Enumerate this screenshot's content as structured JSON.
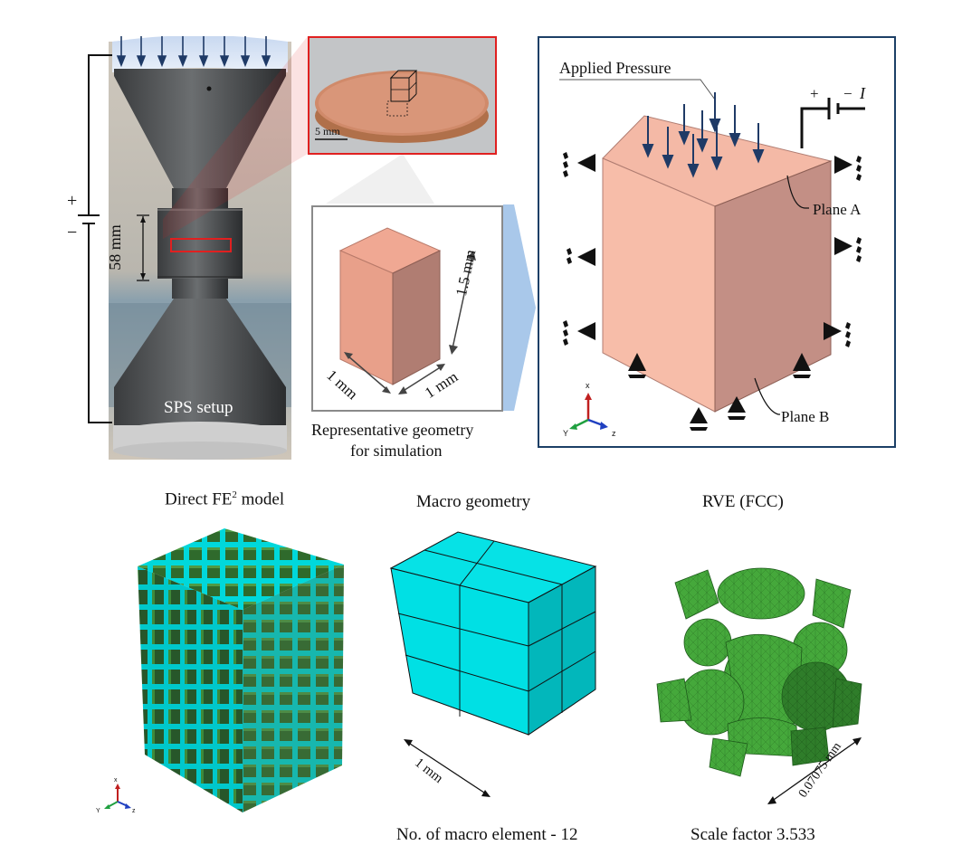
{
  "sps": {
    "dimension_58": "58 mm",
    "setup_label": "SPS setup",
    "plus": "+",
    "minus": "−"
  },
  "photo": {
    "scale_label": "5 mm"
  },
  "rep_geometry": {
    "dim_height": "1.5 mm",
    "dim_left": "1 mm",
    "dim_right": "1 mm",
    "caption_line1": "Representative geometry",
    "caption_line2": "for simulation"
  },
  "boundary": {
    "applied_pressure": "Applied Pressure",
    "plane_a": "Plane A",
    "plane_b": "Plane B",
    "plus": "+",
    "minus": "−",
    "current": "I",
    "axis_x": "x",
    "axis_y": "Y",
    "axis_z": "z"
  },
  "direct_model": {
    "title": "Direct FE",
    "title_sup": "2",
    "title_suffix": " model",
    "axis_x": "x",
    "axis_y": "Y",
    "axis_z": "z"
  },
  "macro": {
    "title": "Macro geometry",
    "dim": "1 mm",
    "caption": "No. of macro element - 12"
  },
  "rve": {
    "title": "RVE (FCC)",
    "dim": "0.07075 mm",
    "caption": "Scale factor 3.533"
  },
  "colors": {
    "copper_face": "#f4b9a6",
    "copper_side": "#c9968a",
    "cyan": "#00e5e8",
    "green": "#3c9a35",
    "arrow_blue": "#1f3a66",
    "frame_blue": "#1c3f66",
    "red": "#e02020"
  }
}
